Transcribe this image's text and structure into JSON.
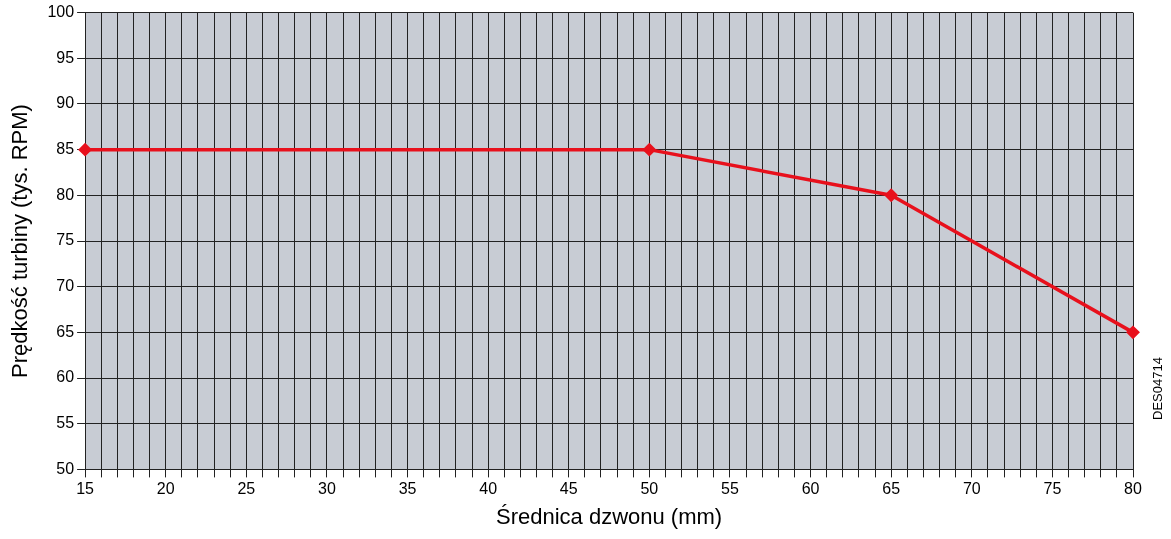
{
  "chart_data": {
    "type": "line",
    "xlabel": "Średnica dzwonu (mm)",
    "ylabel": "Prędkość turbiny (tys. RPM)",
    "x": [
      15,
      50,
      65,
      80
    ],
    "series": [
      {
        "color": "#e8101c",
        "values": [
          85,
          85,
          80,
          65
        ]
      }
    ],
    "xlim": [
      15,
      80
    ],
    "ylim": [
      50,
      100
    ],
    "xticks": [
      15,
      {
        "value": 16,
        "label": null
      },
      {
        "value": 17,
        "label": null
      },
      {
        "value": 18,
        "label": null
      },
      {
        "value": 19,
        "label": null
      },
      20,
      {
        "value": 21,
        "label": null
      },
      {
        "value": 22,
        "label": null
      },
      {
        "value": 23,
        "label": null
      },
      {
        "value": 24,
        "label": null
      },
      25,
      {
        "value": 26,
        "label": null
      },
      {
        "value": 27,
        "label": null
      },
      {
        "value": 28,
        "label": null
      },
      {
        "value": 29,
        "label": null
      },
      30,
      {
        "value": 31,
        "label": null
      },
      {
        "value": 32,
        "label": null
      },
      {
        "value": 33,
        "label": null
      },
      {
        "value": 34,
        "label": null
      },
      35,
      {
        "value": 36,
        "label": null
      },
      {
        "value": 37,
        "label": null
      },
      {
        "value": 38,
        "label": null
      },
      {
        "value": 39,
        "label": null
      },
      40,
      {
        "value": 41,
        "label": null
      },
      {
        "value": 42,
        "label": null
      },
      {
        "value": 43,
        "label": null
      },
      {
        "value": 44,
        "label": null
      },
      45,
      {
        "value": 46,
        "label": null
      },
      {
        "value": 47,
        "label": null
      },
      {
        "value": 48,
        "label": null
      },
      {
        "value": 49,
        "label": null
      },
      50,
      {
        "value": 51,
        "label": null
      },
      {
        "value": 52,
        "label": null
      },
      {
        "value": 53,
        "label": null
      },
      {
        "value": 54,
        "label": null
      },
      55,
      {
        "value": 56,
        "label": null
      },
      {
        "value": 57,
        "label": null
      },
      {
        "value": 58,
        "label": null
      },
      {
        "value": 59,
        "label": null
      },
      60,
      {
        "value": 61,
        "label": null
      },
      {
        "value": 62,
        "label": null
      },
      {
        "value": 63,
        "label": null
      },
      {
        "value": 64,
        "label": null
      },
      65,
      {
        "value": 66,
        "label": null
      },
      {
        "value": 67,
        "label": null
      },
      {
        "value": 68,
        "label": null
      },
      {
        "value": 69,
        "label": null
      },
      70,
      {
        "value": 71,
        "label": null
      },
      {
        "value": 72,
        "label": null
      },
      {
        "value": 73,
        "label": null
      },
      {
        "value": 74,
        "label": null
      },
      75,
      {
        "value": 76,
        "label": null
      },
      {
        "value": 77,
        "label": null
      },
      {
        "value": 78,
        "label": null
      },
      {
        "value": 79,
        "label": null
      },
      80
    ],
    "yticks": [
      50,
      55,
      60,
      65,
      70,
      75,
      80,
      85,
      90,
      95,
      100
    ],
    "grid": true,
    "legend": false,
    "marker": "diamond",
    "line_style": "solid",
    "annotations": [
      "DES04714"
    ]
  }
}
